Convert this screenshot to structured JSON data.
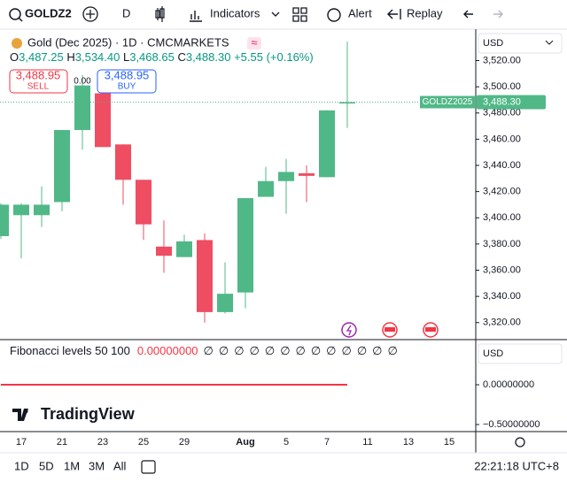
{
  "toolbar": {
    "symbol": "GOLDZ2",
    "interval": "D",
    "indicators": "Indicators",
    "alert": "Alert",
    "replay": "Replay"
  },
  "legend": {
    "title": "Gold (Dec 2025) · 1D · CMCMARKETS",
    "o_label": "O",
    "o": "3,487.25",
    "h_label": "H",
    "h": "3,534.40",
    "l_label": "L",
    "l": "3,468.65",
    "c_label": "C",
    "c": "3,488.30",
    "change": "+5.55 (+0.16%)"
  },
  "trade": {
    "sell_price": "3,488.95",
    "sell": "SELL",
    "spread": "0.00",
    "buy_price": "3,488.95",
    "buy": "BUY"
  },
  "price_axis": {
    "currency": "USD",
    "last_symbol": "GOLDZ2025",
    "last_price": {
      "value": 3488.3,
      "label": "3,488.30"
    }
  },
  "chart_data": {
    "type": "candlestick",
    "categories": [
      null,
      "17",
      null,
      "21",
      null,
      "23",
      null,
      "25",
      null,
      "29",
      null,
      null,
      "Aug",
      null,
      "5",
      null,
      "7",
      null,
      "11",
      null,
      "13",
      null,
      "15"
    ],
    "open": [
      3386,
      3402,
      3402,
      3412,
      3467,
      3495,
      3456,
      3429,
      3378,
      3370,
      3383,
      3328,
      3343,
      3416,
      3428,
      3434,
      3431,
      3487.25,
      null,
      null,
      null,
      null,
      null
    ],
    "high": [
      3411,
      3411,
      3424,
      3467,
      3509,
      3501,
      3456,
      3429,
      3398,
      3387,
      3388,
      3366,
      3415,
      3439,
      3445,
      3440,
      3482,
      3534.4,
      null,
      null,
      null,
      null,
      null
    ],
    "low": [
      3384,
      3369,
      3393,
      3405,
      3452,
      3454,
      3410,
      3383,
      3358,
      3370,
      3320,
      3327,
      3331,
      3416,
      3403,
      3412,
      3431,
      3468.65,
      null,
      null,
      null,
      null,
      null
    ],
    "close": [
      3410,
      3410,
      3410,
      3467,
      3501,
      3454,
      3429,
      3395,
      3371,
      3382,
      3328,
      3342,
      3415,
      3428,
      3435,
      3432,
      3482,
      3488.3,
      null,
      null,
      null,
      null,
      null
    ],
    "up_color": "#50b887",
    "down_color": "#ee4d62",
    "ylim": [
      3307,
      3543.3
    ],
    "yticks": [
      {
        "value": 3320,
        "label": "3,320.00"
      },
      {
        "value": 3340,
        "label": "3,340.00"
      },
      {
        "value": 3360,
        "label": "3,360.00"
      },
      {
        "value": 3380,
        "label": "3,380.00"
      },
      {
        "value": 3400,
        "label": "3,400.00"
      },
      {
        "value": 3420,
        "label": "3,420.00"
      },
      {
        "value": 3440,
        "label": "3,440.00"
      },
      {
        "value": 3460,
        "label": "3,460.00"
      },
      {
        "value": 3480,
        "label": "3,480.00"
      },
      {
        "value": 3500,
        "label": "3,500.00"
      },
      {
        "value": 3520,
        "label": "3,520.00"
      }
    ]
  },
  "indicator": {
    "type": "line",
    "title": "Fibonacci levels 50 100",
    "value_label": "0.00000000",
    "placeholders": [
      "∅",
      "∅",
      "∅",
      "∅",
      "∅",
      "∅",
      "∅",
      "∅",
      "∅",
      "∅",
      "∅",
      "∅",
      "∅"
    ],
    "currency": "USD",
    "color": "#f23645",
    "values": [
      0,
      0,
      0,
      0,
      0,
      0,
      0,
      0,
      0,
      0,
      0,
      0,
      0,
      0,
      0,
      0,
      0,
      0
    ],
    "ylim": [
      -0.589,
      0.567
    ],
    "yticks": [
      {
        "value": 0,
        "label": "0.00000000"
      },
      {
        "value": -0.5,
        "label": "−0.50000000"
      }
    ]
  },
  "logo": "TradingView",
  "footer": {
    "ranges": [
      "1D",
      "5D",
      "1M",
      "3M",
      "All"
    ],
    "time": "22:21:18 UTC+8"
  }
}
